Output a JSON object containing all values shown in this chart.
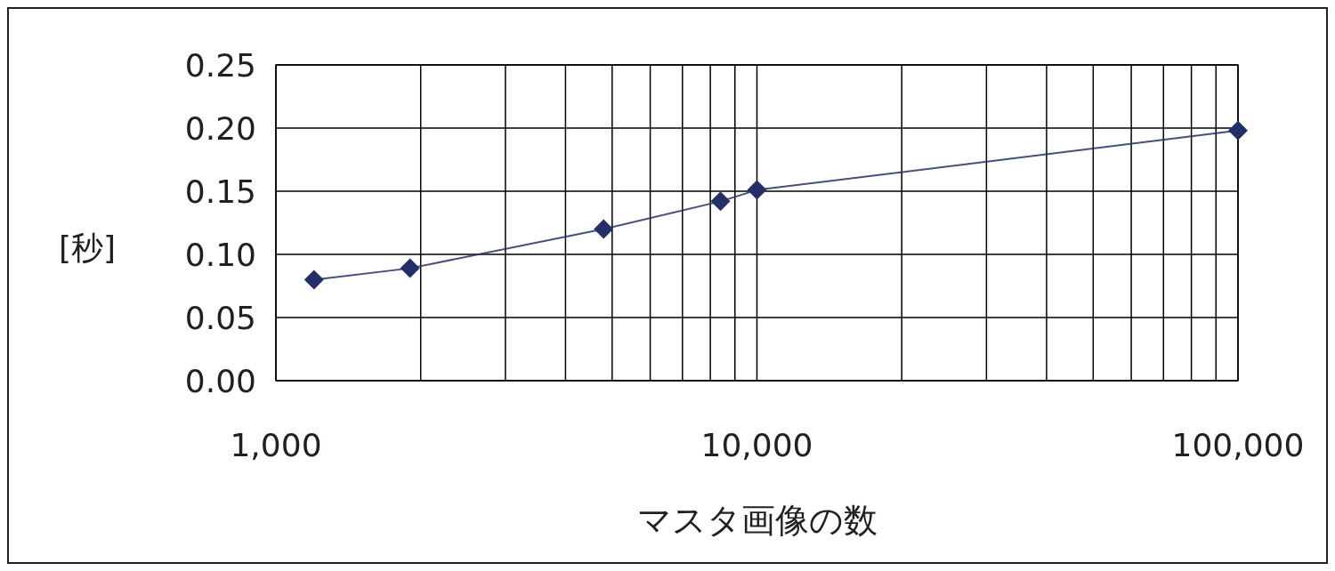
{
  "chart_data": {
    "type": "line",
    "xlabel": "マスタ画像の数",
    "ylabel": "[秒]",
    "log": "x",
    "x": [
      1200,
      1900,
      4800,
      8400,
      10000,
      100000
    ],
    "series": [
      {
        "color": "#233067",
        "values": [
          0.08,
          0.089,
          0.12,
          0.142,
          0.151,
          0.198
        ]
      }
    ],
    "xlim": [
      1000,
      100000
    ],
    "xticks": [
      {
        "value": 1000,
        "label": "1,000"
      },
      {
        "value": 2000,
        "label": null
      },
      {
        "value": 3000,
        "label": null
      },
      {
        "value": 4000,
        "label": null
      },
      {
        "value": 5000,
        "label": null
      },
      {
        "value": 6000,
        "label": null
      },
      {
        "value": 7000,
        "label": null
      },
      {
        "value": 8000,
        "label": null
      },
      {
        "value": 9000,
        "label": null
      },
      {
        "value": 10000,
        "label": "10,000"
      },
      {
        "value": 20000,
        "label": null
      },
      {
        "value": 30000,
        "label": null
      },
      {
        "value": 40000,
        "label": null
      },
      {
        "value": 50000,
        "label": null
      },
      {
        "value": 60000,
        "label": null
      },
      {
        "value": 70000,
        "label": null
      },
      {
        "value": 80000,
        "label": null
      },
      {
        "value": 90000,
        "label": null
      },
      {
        "value": 100000,
        "label": "100,000"
      }
    ],
    "ylim": [
      0,
      0.25
    ],
    "yticks": [
      {
        "value": 0,
        "label": "0.00"
      },
      {
        "value": 0.05,
        "label": "0.05"
      },
      {
        "value": 0.1,
        "label": "0.10"
      },
      {
        "value": 0.15,
        "label": "0.15"
      },
      {
        "value": 0.2,
        "label": "0.20"
      },
      {
        "value": 0.25,
        "label": "0.25"
      }
    ],
    "grid": true,
    "marker": "diamond",
    "line_style": "solid"
  }
}
